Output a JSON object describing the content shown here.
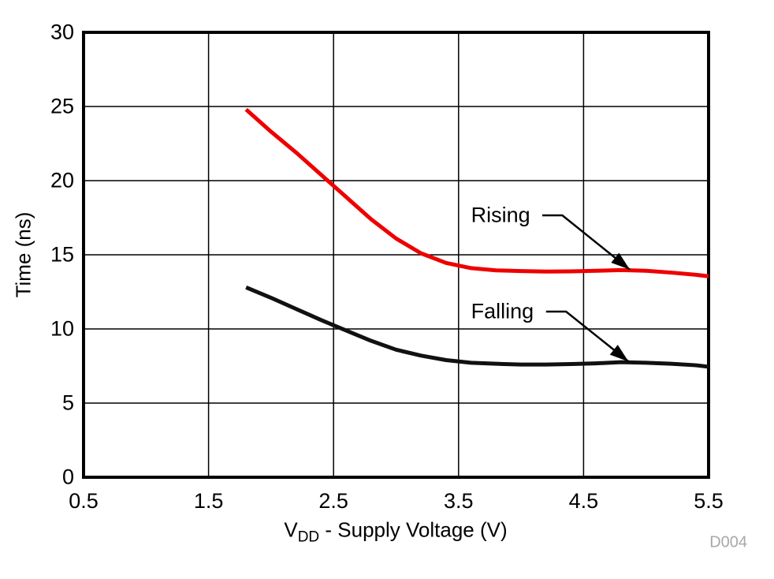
{
  "chart_data": {
    "type": "line",
    "title": "",
    "xlabel": {
      "prefix": "V",
      "sub": "DD",
      "rest": " - Supply Voltage (V)"
    },
    "ylabel": "Time (ns)",
    "xlim": [
      0.5,
      5.5
    ],
    "ylim": [
      0,
      30
    ],
    "xticks": [
      0.5,
      1.5,
      2.5,
      3.5,
      4.5,
      5.5
    ],
    "yticks": [
      0,
      5,
      10,
      15,
      20,
      25,
      30
    ],
    "grid": true,
    "frame_color": "#000000",
    "grid_color": "#000000",
    "x": [
      1.8,
      2.0,
      2.2,
      2.4,
      2.6,
      2.8,
      3.0,
      3.2,
      3.4,
      3.6,
      3.8,
      4.0,
      4.2,
      4.4,
      4.6,
      4.8,
      5.0,
      5.2,
      5.4,
      5.5
    ],
    "series": [
      {
        "name": "Rising",
        "color": "#ee0000",
        "values": [
          24.8,
          23.3,
          21.9,
          20.4,
          18.9,
          17.4,
          16.1,
          15.1,
          14.45,
          14.1,
          13.95,
          13.9,
          13.87,
          13.88,
          13.92,
          13.97,
          13.92,
          13.8,
          13.65,
          13.55
        ]
      },
      {
        "name": "Falling",
        "color": "#111111",
        "values": [
          12.8,
          12.1,
          11.35,
          10.6,
          9.9,
          9.2,
          8.6,
          8.2,
          7.9,
          7.72,
          7.65,
          7.6,
          7.6,
          7.63,
          7.68,
          7.76,
          7.72,
          7.65,
          7.55,
          7.45
        ]
      }
    ],
    "annotations": [
      {
        "label": "Rising",
        "text_x": 3.6,
        "text_y": 17.66,
        "lead_from_x": 4.17,
        "elbow_x": 4.33,
        "tip_x": 4.87,
        "tip_y": 14.0
      },
      {
        "label": "Falling",
        "text_x": 3.6,
        "text_y": 11.17,
        "lead_from_x": 4.2,
        "elbow_x": 4.36,
        "tip_x": 4.86,
        "tip_y": 7.8
      }
    ],
    "watermark": "D004"
  }
}
